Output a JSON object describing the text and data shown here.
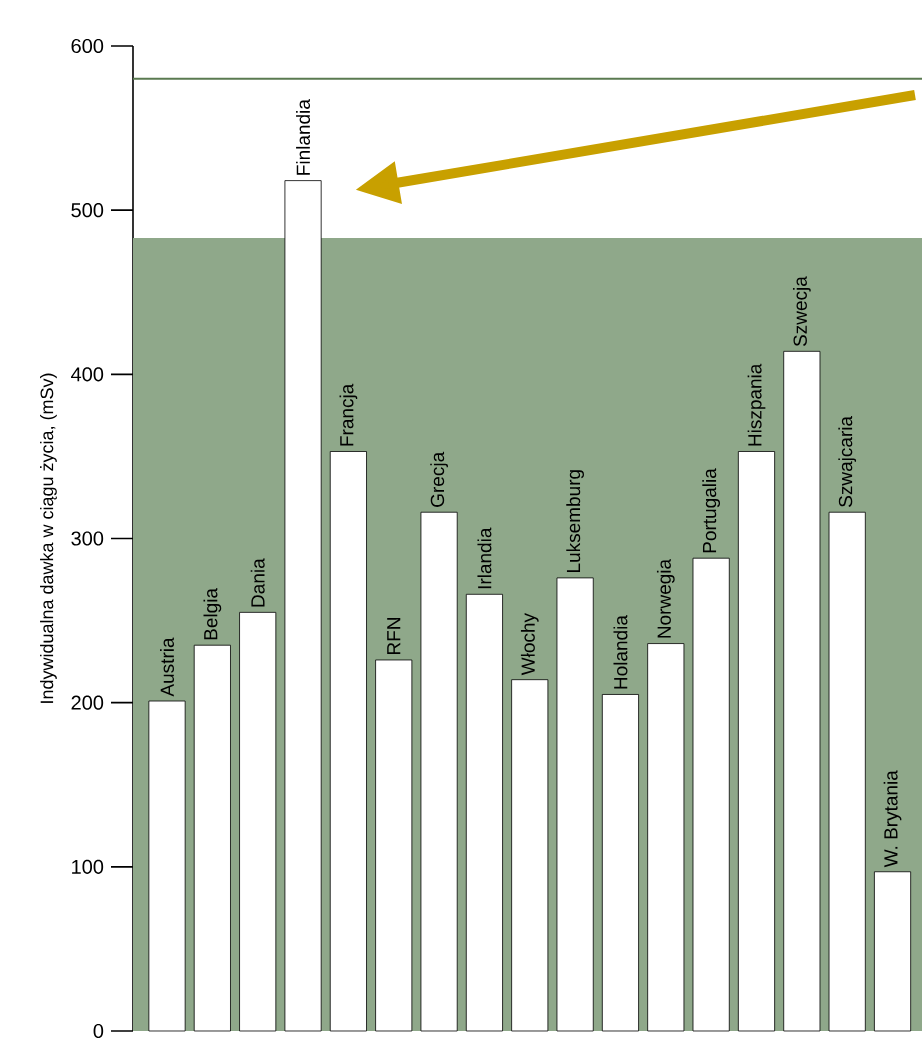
{
  "chart_data": {
    "type": "bar",
    "ylabel": "Indywidualna dawka w ciągu życia, (mSv)",
    "categories": [
      "Austria",
      "Belgia",
      "Dania",
      "Finlandia",
      "Francja",
      "RFN",
      "Grecja",
      "Irlandia",
      "Włochy",
      "Luksemburg",
      "Holandia",
      "Norwegia",
      "Portugalia",
      "Hiszpania",
      "Szwecja",
      "Szwajcaria",
      "W. Brytania"
    ],
    "values": [
      201,
      235,
      255,
      518,
      353,
      226,
      316,
      266,
      214,
      276,
      205,
      236,
      288,
      353,
      414,
      316,
      97
    ],
    "color": "#ffffff",
    "ylim": [
      0,
      600
    ],
    "yticks": [
      0,
      100,
      200,
      300,
      400,
      500,
      600
    ],
    "bands": [
      {
        "axis": "y",
        "from": 0,
        "to": 483,
        "color": "#8fa88a"
      }
    ],
    "ref_lines": [
      {
        "axis": "y",
        "value": 580,
        "color": "#5a7a50"
      }
    ],
    "grid": false
  }
}
